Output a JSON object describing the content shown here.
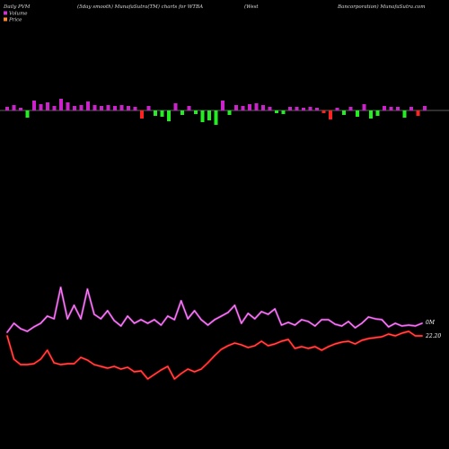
{
  "header": {
    "left": "Daily PVM",
    "center": "(5day smooth) MunafaSutra(TM) charts for WTBA",
    "right1": "(West",
    "right2": "Bancorporation) MunafaSutra.com"
  },
  "legend": [
    {
      "label": "Volume",
      "color": "#cc33cc"
    },
    {
      "label": "Price",
      "color": "#ff8833"
    }
  ],
  "chart_data": {
    "type": "line",
    "volume_label": "0M",
    "price_label": "22.20",
    "volume_bars": {
      "colors": {
        "up": "#cc22cc",
        "down_green": "#22ee22",
        "down_red": "#ff2222"
      },
      "values": [
        {
          "h": 4,
          "c": "up"
        },
        {
          "h": 6,
          "c": "up"
        },
        {
          "h": 3,
          "c": "up"
        },
        {
          "h": -8,
          "c": "green"
        },
        {
          "h": 11,
          "c": "up"
        },
        {
          "h": 7,
          "c": "up"
        },
        {
          "h": 9,
          "c": "up"
        },
        {
          "h": 5,
          "c": "up"
        },
        {
          "h": 13,
          "c": "up"
        },
        {
          "h": 9,
          "c": "up"
        },
        {
          "h": 5,
          "c": "up"
        },
        {
          "h": 6,
          "c": "up"
        },
        {
          "h": 10,
          "c": "up"
        },
        {
          "h": 6,
          "c": "up"
        },
        {
          "h": 5,
          "c": "up"
        },
        {
          "h": 6,
          "c": "up"
        },
        {
          "h": 5,
          "c": "up"
        },
        {
          "h": 6,
          "c": "up"
        },
        {
          "h": 5,
          "c": "up"
        },
        {
          "h": 4,
          "c": "up"
        },
        {
          "h": -9,
          "c": "red"
        },
        {
          "h": 5,
          "c": "up"
        },
        {
          "h": -6,
          "c": "green"
        },
        {
          "h": -7,
          "c": "green"
        },
        {
          "h": -12,
          "c": "green"
        },
        {
          "h": 8,
          "c": "up"
        },
        {
          "h": -5,
          "c": "green"
        },
        {
          "h": 5,
          "c": "up"
        },
        {
          "h": -4,
          "c": "green"
        },
        {
          "h": -13,
          "c": "green"
        },
        {
          "h": -11,
          "c": "green"
        },
        {
          "h": -16,
          "c": "green"
        },
        {
          "h": 11,
          "c": "up"
        },
        {
          "h": -5,
          "c": "green"
        },
        {
          "h": 6,
          "c": "up"
        },
        {
          "h": 5,
          "c": "up"
        },
        {
          "h": 7,
          "c": "up"
        },
        {
          "h": 8,
          "c": "up"
        },
        {
          "h": 6,
          "c": "up"
        },
        {
          "h": 4,
          "c": "up"
        },
        {
          "h": -3,
          "c": "green"
        },
        {
          "h": -4,
          "c": "green"
        },
        {
          "h": 4,
          "c": "up"
        },
        {
          "h": 4,
          "c": "up"
        },
        {
          "h": 3,
          "c": "up"
        },
        {
          "h": 4,
          "c": "up"
        },
        {
          "h": 3,
          "c": "up"
        },
        {
          "h": -3,
          "c": "red"
        },
        {
          "h": -10,
          "c": "red"
        },
        {
          "h": 3,
          "c": "up"
        },
        {
          "h": -5,
          "c": "green"
        },
        {
          "h": 4,
          "c": "up"
        },
        {
          "h": -7,
          "c": "green"
        },
        {
          "h": 7,
          "c": "up"
        },
        {
          "h": -9,
          "c": "green"
        },
        {
          "h": -6,
          "c": "green"
        },
        {
          "h": 5,
          "c": "up"
        },
        {
          "h": 4,
          "c": "up"
        },
        {
          "h": 4,
          "c": "up"
        },
        {
          "h": -8,
          "c": "green"
        },
        {
          "h": 4,
          "c": "up"
        },
        {
          "h": -6,
          "c": "red"
        },
        {
          "h": 5,
          "c": "up"
        }
      ]
    },
    "volume_line": [
      370,
      360,
      366,
      369,
      364,
      360,
      352,
      355,
      320,
      355,
      340,
      355,
      322,
      350,
      355,
      346,
      357,
      363,
      352,
      360,
      356,
      360,
      356,
      362,
      352,
      356,
      335,
      355,
      346,
      356,
      362,
      356,
      352,
      348,
      340,
      360,
      349,
      355,
      347,
      350,
      344,
      362,
      359,
      362,
      356,
      358,
      363,
      356,
      356,
      361,
      363,
      358,
      365,
      360,
      353,
      355,
      356,
      364,
      360,
      363,
      362,
      363,
      360
    ],
    "price_line": [
      374,
      400,
      406,
      406,
      405,
      400,
      390,
      404,
      406,
      405,
      405,
      398,
      401,
      406,
      408,
      410,
      408,
      411,
      409,
      414,
      413,
      422,
      417,
      412,
      408,
      422,
      416,
      411,
      414,
      411,
      404,
      396,
      389,
      385,
      382,
      384,
      387,
      385,
      380,
      385,
      383,
      380,
      378,
      388,
      386,
      388,
      386,
      390,
      386,
      383,
      381,
      380,
      383,
      379,
      377,
      376,
      375,
      372,
      374,
      371,
      369,
      374,
      374
    ]
  }
}
